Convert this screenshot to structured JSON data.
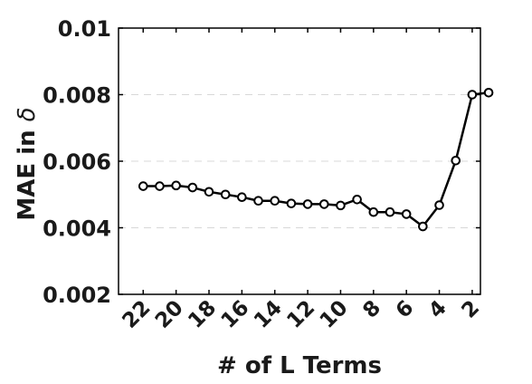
{
  "chart_data": {
    "type": "line",
    "title": "",
    "xlabel": "# of L Terms",
    "ylabel_main": "MAE in",
    "ylabel_symbol": "δ",
    "x_reversed": true,
    "xlim": [
      1.5,
      23.5
    ],
    "ylim": [
      0.002,
      0.01
    ],
    "grid": "y-dashed",
    "x_ticks": [
      22,
      20,
      18,
      16,
      14,
      12,
      10,
      8,
      6,
      4,
      2
    ],
    "x_tick_labels": [
      "22",
      "20",
      "18",
      "16",
      "14",
      "12",
      "10",
      "8",
      "6",
      "4",
      "2"
    ],
    "y_ticks": [
      0.002,
      0.004,
      0.006,
      0.008,
      0.01
    ],
    "y_tick_labels": [
      "0.002",
      "0.004",
      "0.006",
      "0.008",
      "0.01"
    ],
    "series": [
      {
        "x": [
          22,
          21,
          20,
          19,
          18,
          17,
          16,
          15,
          14,
          13,
          12,
          11,
          10,
          9,
          8,
          7,
          6,
          5,
          4,
          3,
          2,
          1
        ],
        "y": [
          0.00525,
          0.00525,
          0.00527,
          0.00521,
          0.00508,
          0.005,
          0.00492,
          0.00481,
          0.00481,
          0.00473,
          0.00471,
          0.00471,
          0.00467,
          0.00485,
          0.00447,
          0.00447,
          0.00441,
          0.00404,
          0.00468,
          0.00602,
          0.008,
          0.00806
        ],
        "color": "#000000"
      }
    ]
  }
}
